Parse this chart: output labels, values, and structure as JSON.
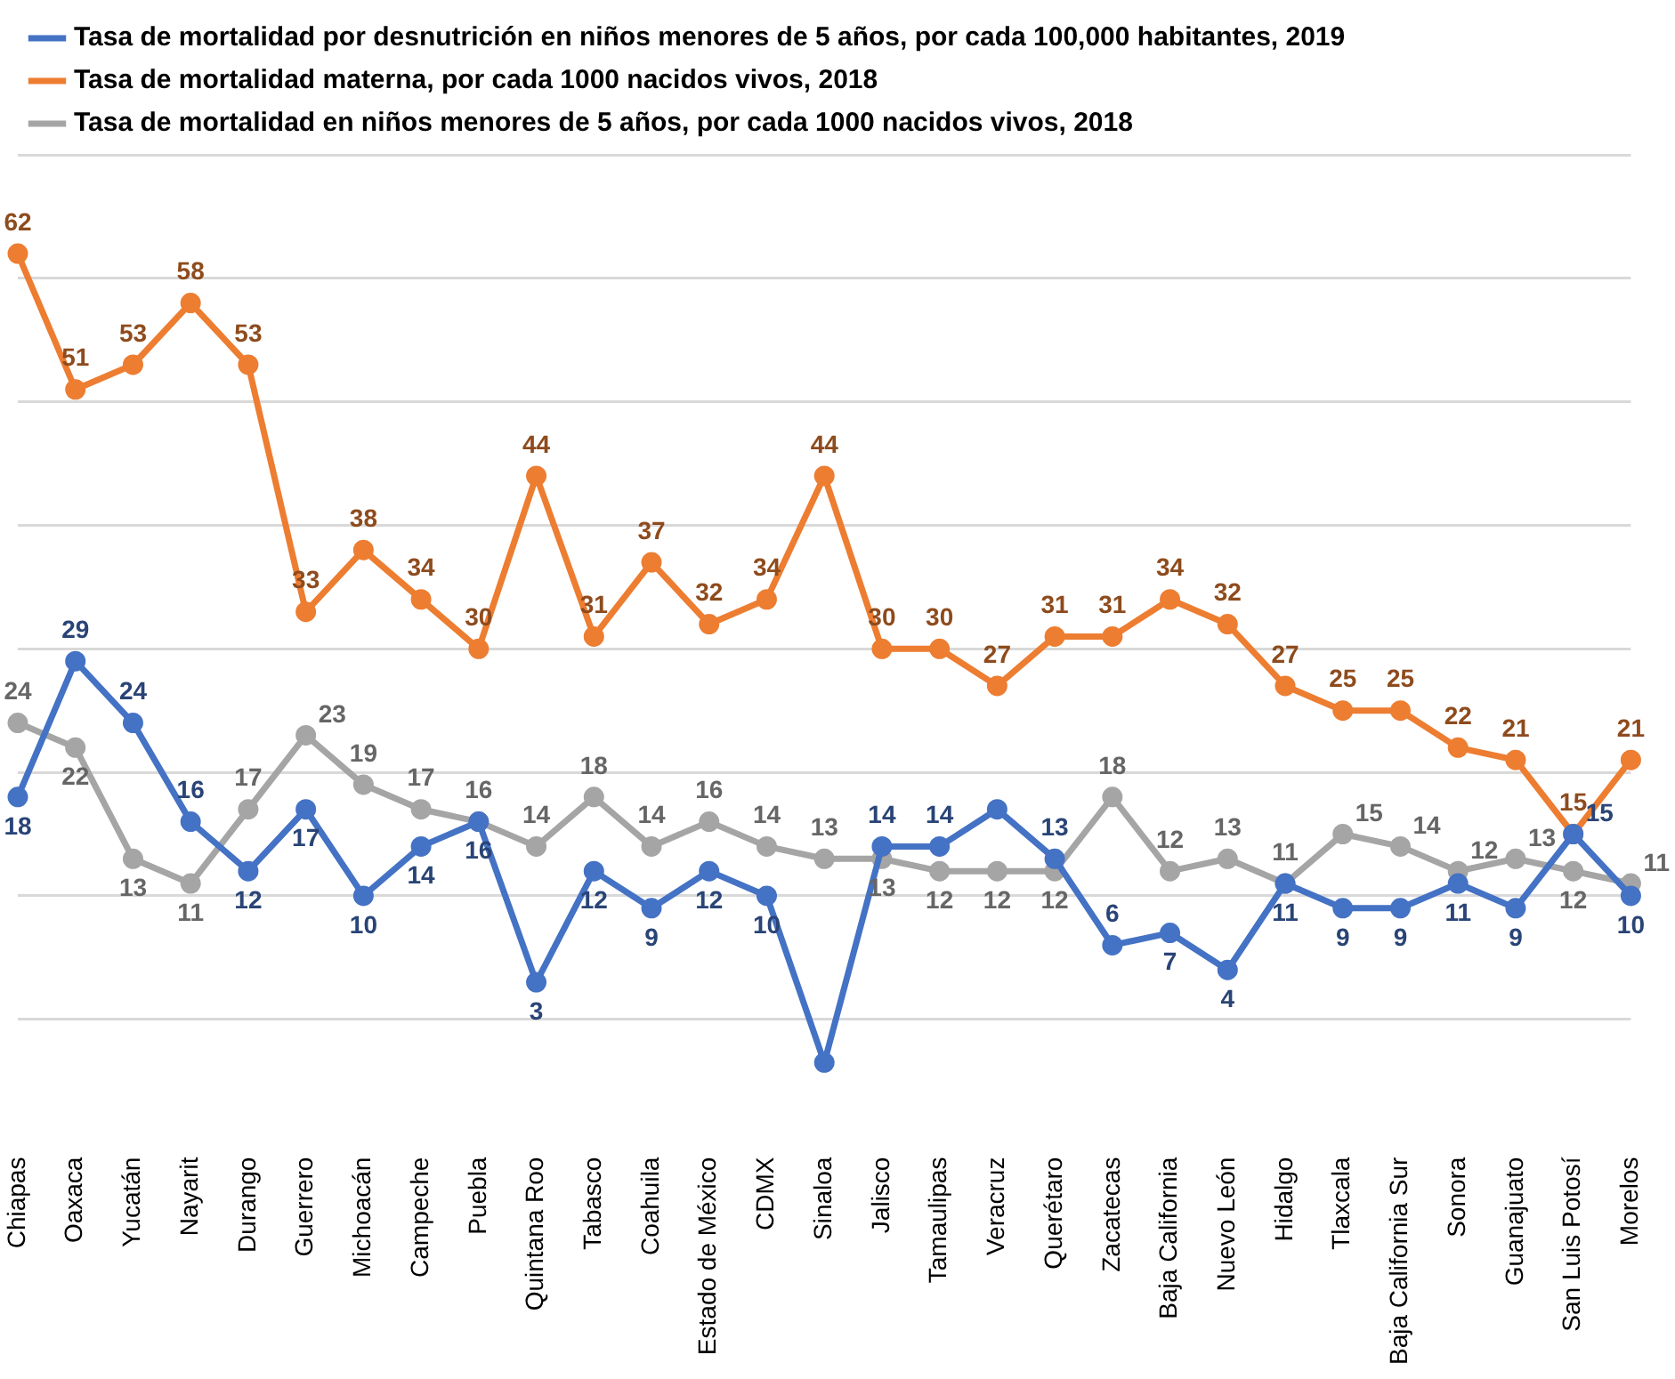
{
  "chart_data": {
    "type": "line",
    "categories": [
      "Chiapas",
      "Oaxaca",
      "Yucatán",
      "Nayarit",
      "Durango",
      "Guerrero",
      "Michoacán",
      "Campeche",
      "Puebla",
      "Quintana Roo",
      "Tabasco",
      "Coahuila",
      "Estado de México",
      "CDMX",
      "Sinaloa",
      "Jalisco",
      "Tamaulipas",
      "Veracruz",
      "Querétaro",
      "Zacatecas",
      "Baja California",
      "Nuevo León",
      "Hidalgo",
      "Tlaxcala",
      "Baja California Sur",
      "Sonora",
      "Guanajuato",
      "San Luis Potosí",
      "Morelos"
    ],
    "series": [
      {
        "name": "Tasa de mortalidad por desnutrición en niños menores de 5 años, por cada 100,000 habitantes, 2019",
        "color": "#4472c4",
        "values": [
          18,
          29,
          24,
          16,
          12,
          17,
          10,
          14,
          16,
          3,
          12,
          9,
          12,
          10,
          -3.5,
          14,
          14,
          17,
          13,
          6,
          7,
          4,
          11,
          9,
          9,
          11,
          9,
          15,
          10
        ],
        "value_labels": [
          "18",
          "29",
          "24",
          "16",
          "12",
          "17",
          "10",
          "14",
          "16",
          "3",
          "12",
          "9",
          "12",
          "10",
          null,
          "14",
          "14",
          null,
          "13",
          "6",
          "7",
          "4",
          "11",
          "9",
          "9",
          "11",
          "9",
          "15",
          "10"
        ]
      },
      {
        "name": "Tasa de mortalidad materna, por cada 1000 nacidos vivos, 2018",
        "color": "#ed7d31",
        "values": [
          62,
          51,
          53,
          58,
          53,
          33,
          38,
          34,
          30,
          44,
          31,
          37,
          32,
          34,
          44,
          30,
          30,
          27,
          31,
          31,
          34,
          32,
          27,
          25,
          25,
          22,
          21,
          15,
          21
        ],
        "value_labels": [
          "62",
          "51",
          "53",
          "58",
          "53",
          "33",
          "38",
          "34",
          "30",
          "44",
          "31",
          "37",
          "32",
          "34",
          "44",
          "30",
          "30",
          "27",
          "31",
          "31",
          "34",
          "32",
          "27",
          "25",
          "25",
          "22",
          "21",
          "15",
          "21"
        ]
      },
      {
        "name": "Tasa de mortalidad en niños menores de 5 años, por cada 1000 nacidos vivos, 2018",
        "color": "#a5a5a5",
        "values": [
          24,
          22,
          13,
          11,
          17,
          23,
          19,
          17,
          16,
          14,
          18,
          14,
          16,
          14,
          13,
          13,
          12,
          12,
          12,
          18,
          12,
          13,
          11,
          15,
          14,
          12,
          13,
          12,
          11
        ],
        "value_labels": [
          "24",
          "22",
          "13",
          "11",
          "17",
          "23",
          "19",
          "17",
          "16",
          "14",
          "18",
          "14",
          "16",
          "14",
          "13",
          "13",
          "12",
          "12",
          "12",
          "18",
          "12",
          "13",
          "11",
          "15",
          "14",
          "12",
          "13",
          "12",
          "11"
        ]
      }
    ],
    "yticks": [
      {
        "value": 0,
        "label": null
      },
      {
        "value": 10,
        "label": null
      },
      {
        "value": 20,
        "label": null
      },
      {
        "value": 30,
        "label": null
      },
      {
        "value": 40,
        "label": null
      },
      {
        "value": 50,
        "label": null
      },
      {
        "value": 60,
        "label": null
      },
      {
        "value": 70,
        "label": null
      }
    ],
    "tick_labels": "x",
    "grid": "y",
    "legend": "top left",
    "marker": "circle",
    "line_style": "solid"
  }
}
